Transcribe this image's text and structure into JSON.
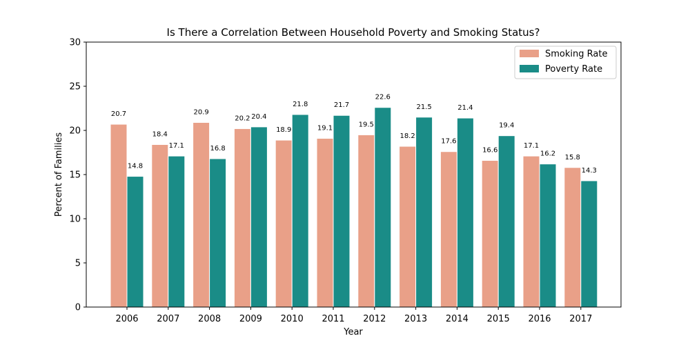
{
  "chart_data": {
    "type": "bar",
    "title": "Is There a Correlation Between Household Poverty and Smoking Status?",
    "xlabel": "Year",
    "ylabel": "Percent of Families",
    "categories": [
      "2006",
      "2007",
      "2008",
      "2009",
      "2010",
      "2011",
      "2012",
      "2013",
      "2014",
      "2015",
      "2016",
      "2017"
    ],
    "ylim": [
      0,
      30
    ],
    "yticks": [
      0,
      5,
      10,
      15,
      20,
      25,
      30
    ],
    "legend_position": "top-right",
    "grid": false,
    "series": [
      {
        "name": "Smoking Rate",
        "color": "#E9A088",
        "values": [
          20.7,
          18.4,
          20.9,
          20.2,
          18.9,
          19.1,
          19.5,
          18.2,
          17.6,
          16.6,
          17.1,
          15.8
        ],
        "labels": [
          "20.7",
          "18.4",
          "20.9",
          "20.2",
          "18.9",
          "19.1",
          "19.5",
          "18.2",
          "17.6",
          "16.6",
          "17.1",
          "15.8"
        ]
      },
      {
        "name": "Poverty Rate",
        "color": "#1A8C87",
        "values": [
          14.8,
          17.1,
          16.8,
          20.4,
          21.8,
          21.7,
          22.6,
          21.5,
          21.4,
          19.4,
          16.2,
          14.3
        ],
        "labels": [
          "14.8",
          "17.1",
          "16.8",
          "20.4",
          "21.8",
          "21.7",
          "22.6",
          "21.5",
          "21.4",
          "19.4",
          "16.2",
          "14.3"
        ]
      }
    ]
  }
}
